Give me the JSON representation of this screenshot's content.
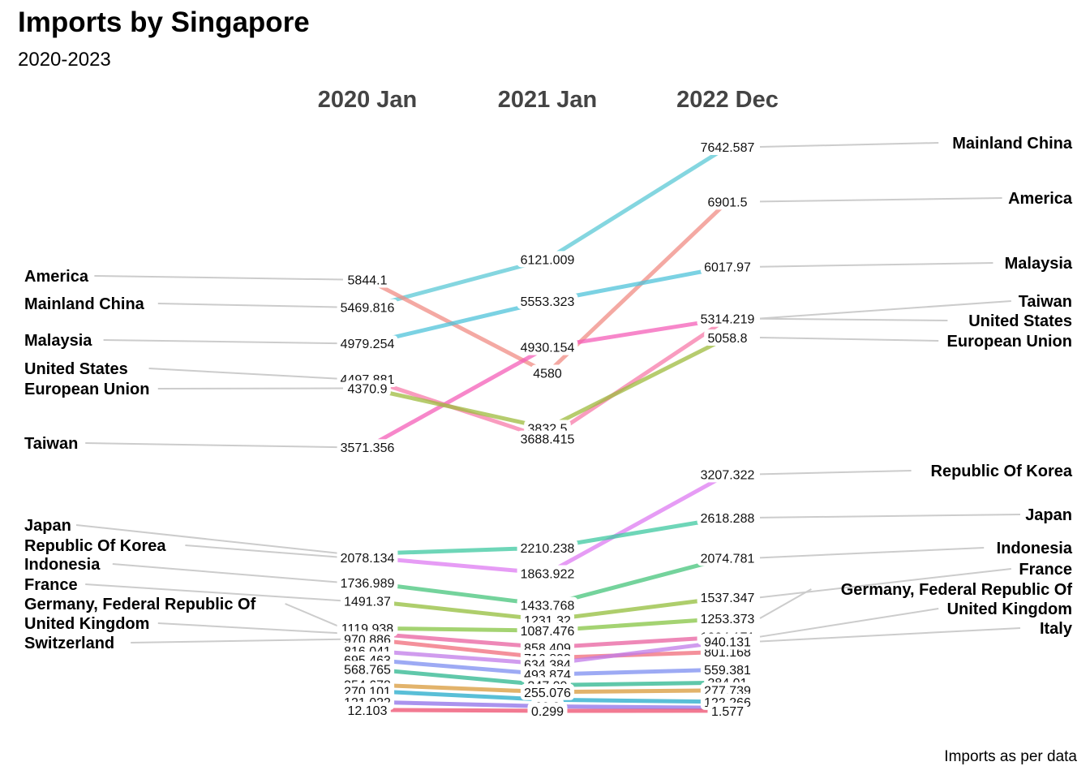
{
  "title": "Imports by Singapore",
  "subtitle": "2020-2023",
  "caption": "Imports as per data",
  "chart_data": {
    "type": "slope",
    "periods": [
      "2020 Jan",
      "2021 Jan",
      "2022 Dec"
    ],
    "series": [
      {
        "name": "Mainland China",
        "values": [
          5469.816,
          6121.009,
          7642.587
        ],
        "color": "#5BC8D6"
      },
      {
        "name": "America",
        "values": [
          5844.1,
          4580,
          6901.5
        ],
        "color": "#F08C84"
      },
      {
        "name": "Malaysia",
        "values": [
          4979.254,
          5553.323,
          6017.97
        ],
        "color": "#4FC3D9"
      },
      {
        "name": "Taiwan",
        "values": [
          3571.356,
          4930.154,
          5317.279
        ],
        "color": "#F45FB8"
      },
      {
        "name": "United States",
        "values": [
          4497.881,
          3688.415,
          5314.219
        ],
        "color": "#F77BAA"
      },
      {
        "name": "European Union",
        "values": [
          4370.9,
          3832.5,
          5058.8
        ],
        "color": "#9DBB3D"
      },
      {
        "name": "Republic Of Korea",
        "values": [
          2078.134,
          1863.922,
          3207.322
        ],
        "color": "#DE7BF2"
      },
      {
        "name": "Japan",
        "values": [
          2129.194,
          2210.238,
          2618.288
        ],
        "color": "#3DC8A0"
      },
      {
        "name": "Indonesia",
        "values": [
          1736.989,
          1433.768,
          2074.781
        ],
        "color": "#46C47B"
      },
      {
        "name": "France",
        "values": [
          1491.37,
          1231.32,
          1537.347
        ],
        "color": "#93BE3B"
      },
      {
        "name": "Germany, Federal Republic Of",
        "values": [
          1119.938,
          1087.476,
          1253.373
        ],
        "color": "#86C443"
      },
      {
        "name": "United Kingdom",
        "values": [
          1050.2,
          858.409,
          1004.171
        ],
        "color": "#E8609F"
      },
      {
        "name": "Switzerland",
        "values": [
          970.886,
          716.893,
          801.168
        ],
        "color": "#F06B7A"
      },
      {
        "name": "Italy",
        "values": [
          816.041,
          634.384,
          940.131
        ],
        "color": "#C07BE8"
      },
      {
        "name": "",
        "values": [
          695.463,
          493.874,
          559.381
        ],
        "color": "#7C8DF0"
      },
      {
        "name": "",
        "values": [
          568.765,
          347.09,
          384.01
        ],
        "color": "#2BB58E"
      },
      {
        "name": "",
        "values": [
          354.678,
          255.076,
          277.739
        ],
        "color": "#D89A3A"
      },
      {
        "name": "",
        "values": [
          270.101,
          150.7,
          122.266
        ],
        "color": "#22A9C9"
      },
      {
        "name": "",
        "values": [
          121.022,
          60.3,
          40.2
        ],
        "color": "#8E6FE8"
      },
      {
        "name": "",
        "values": [
          12.103,
          0.299,
          1.577
        ],
        "color": "#EE4D6E"
      }
    ],
    "labelled_values": {
      "2020 Jan": [
        "5844.1",
        "5469.816",
        "4979.254",
        "4497.881",
        "4370.9",
        "3571.356",
        "2129.194",
        "2078.134",
        "1736.989",
        "1491.37",
        "1119.938",
        "970.886",
        "816.041",
        "695.463",
        "568.765",
        "354.678",
        "270.101",
        "121.022",
        "12.103"
      ],
      "2021 Jan": [
        "6121.009",
        "5553.323",
        "4930.154",
        "4580",
        "3832.5",
        "3688.415",
        "2210.238",
        "1863.922",
        "1433.768",
        "1231.32",
        "1087.476",
        "858.409",
        "716.893",
        "634.384",
        "493.874",
        "347.09",
        "255.076",
        "60.3",
        "0.299"
      ],
      "2022 Dec": [
        "7642.587",
        "6901.5",
        "6017.97",
        "5317.279",
        "5314.219",
        "5058.8",
        "3207.322",
        "2618.288",
        "2074.781",
        "1537.347",
        "1253.373",
        "1004.171",
        "801.168",
        "940.131",
        "559.381",
        "384.01",
        "277.739",
        "122.266",
        "1.577"
      ]
    }
  }
}
